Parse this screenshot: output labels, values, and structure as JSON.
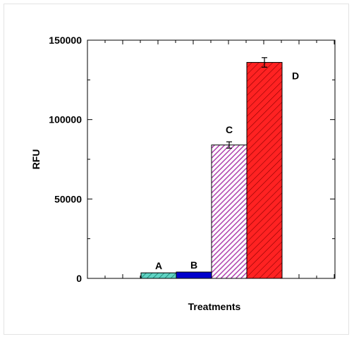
{
  "chart_data": {
    "type": "bar",
    "title": "",
    "xlabel": "Treatments",
    "ylabel": "RFU",
    "ylim": [
      0,
      150000
    ],
    "yticks": [
      0,
      50000,
      100000,
      150000
    ],
    "ytick_labels": [
      "0",
      "50000",
      "100000",
      "150000"
    ],
    "categories": [
      "A",
      "B",
      "C",
      "D"
    ],
    "values": [
      3500,
      4000,
      84000,
      136000
    ],
    "errors": [
      0,
      0,
      2000,
      3000
    ],
    "colors": [
      "#5fd3c3",
      "#0000cc",
      "#cc66cc",
      "#ff2222"
    ],
    "hatched": [
      true,
      false,
      true,
      true
    ],
    "grid": false,
    "legend": "none"
  }
}
